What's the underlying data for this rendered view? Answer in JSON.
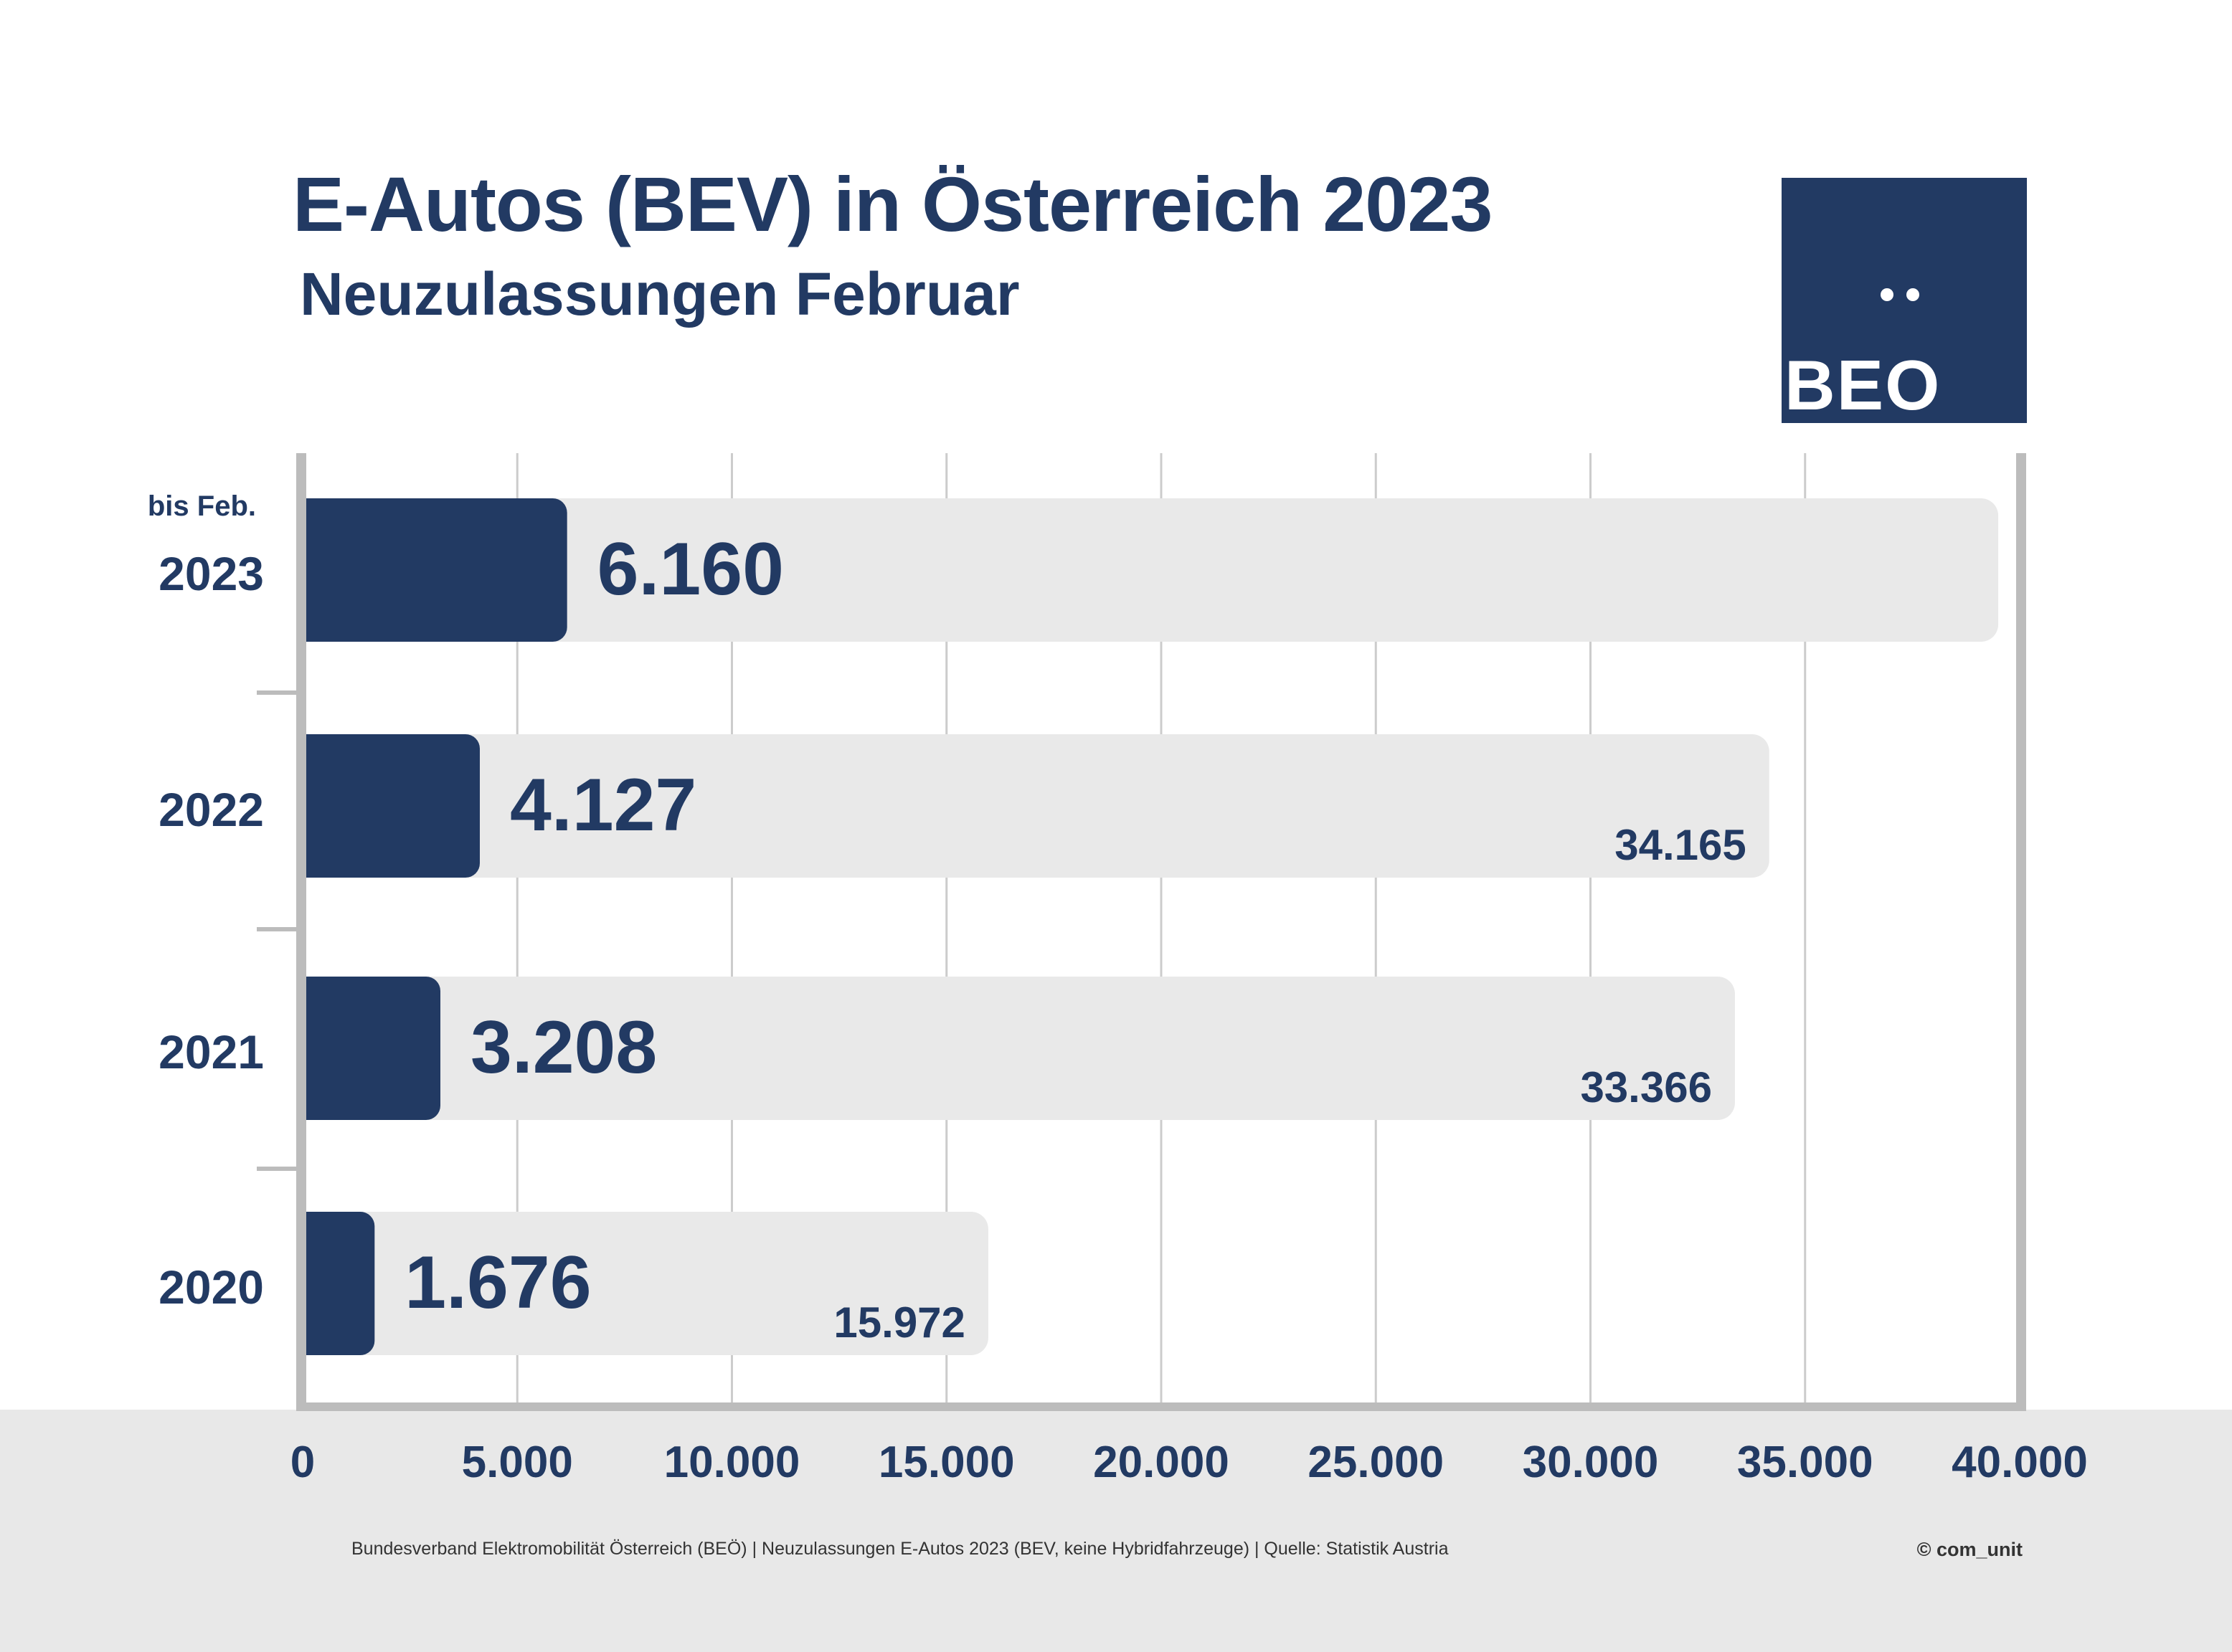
{
  "title": "E-Autos (BEV) in Österreich 2023",
  "subtitle": "Neuzulassungen Februar",
  "logo": {
    "text": "BEO"
  },
  "footer": {
    "source": "Bundesverband Elektromobilität Österreich (BEÖ) | Neuzulassungen E-Autos 2023 (BEV, keine Hybridfahrzeuge) | Quelle: Statistik Austria",
    "copyright": "© com_unit"
  },
  "colors": {
    "bar": "#223a63",
    "background_bar": "#e9e9e9",
    "grid": "#cccccc",
    "frame": "#bcbcbc",
    "footer_band": "#e8e8e8"
  },
  "chart_data": {
    "type": "bar",
    "orientation": "horizontal",
    "categories": [
      "2023",
      "2022",
      "2021",
      "2020"
    ],
    "category_notes": [
      "bis Feb.",
      "",
      "",
      ""
    ],
    "series": [
      {
        "values": [
          6160,
          4127,
          3208,
          1676
        ],
        "labels": [
          "6.160",
          "4.127",
          "3.208",
          "1.676"
        ]
      },
      {
        "values": [
          39500,
          34165,
          33366,
          15972
        ],
        "labels": [
          "",
          "34.165",
          "33.366",
          "15.972"
        ]
      }
    ],
    "xlim": [
      0,
      40000
    ],
    "xticks": [
      0,
      5000,
      10000,
      15000,
      20000,
      25000,
      30000,
      35000,
      40000
    ],
    "xtick_labels": [
      "0",
      "5.000",
      "10.000",
      "15.000",
      "20.000",
      "25.000",
      "30.000",
      "35.000",
      "40.000"
    ],
    "xlabel": "",
    "ylabel": "",
    "grid": true,
    "legend": "none"
  }
}
